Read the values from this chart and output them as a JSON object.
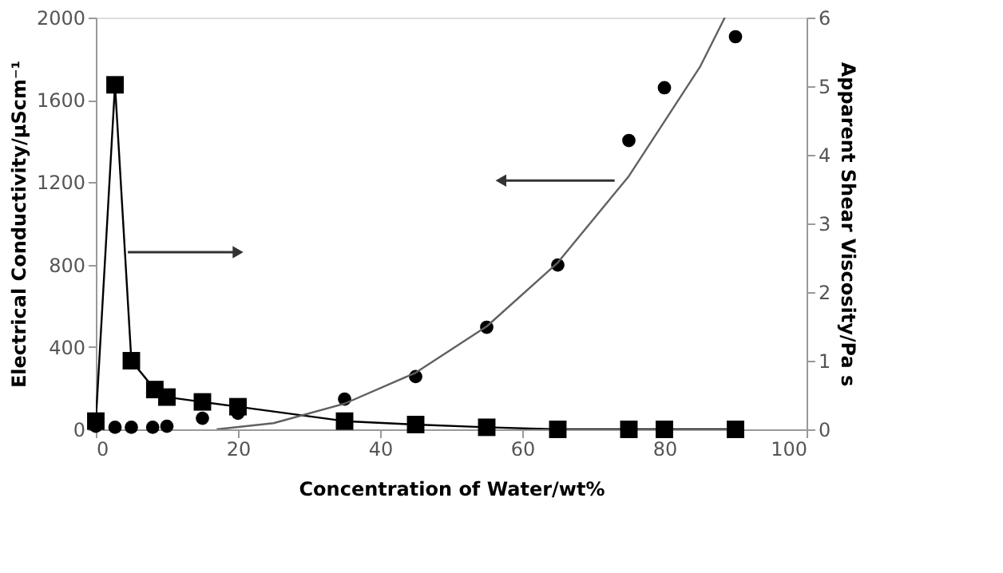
{
  "chart_data": {
    "type": "scatter",
    "xlabel": "Concentration of Water/wt%",
    "ylabel": "Electrical Conductivity/μScm⁻¹",
    "y2label": "Apparent Shear Viscosity/Pa s",
    "xlim": [
      0,
      100
    ],
    "xticks": [
      0,
      20,
      40,
      60,
      80,
      100
    ],
    "ylim": [
      0,
      2000
    ],
    "yticks": [
      0,
      400,
      800,
      1200,
      1600,
      2000
    ],
    "y2lim": [
      0,
      6
    ],
    "y2ticks": [
      0,
      1,
      2,
      3,
      4,
      5,
      6
    ],
    "grid": false,
    "series": [
      {
        "marker": "circle",
        "color": "#000000",
        "x": [
          0,
          2.7,
          5,
          8,
          10,
          15,
          20,
          35,
          45,
          55,
          65,
          75,
          80,
          90
        ],
        "values": [
          15,
          10,
          10,
          10,
          15,
          54,
          78,
          147,
          256,
          496,
          798,
          1403,
          1659,
          1907
        ]
      },
      {
        "type": "line",
        "marker": "none",
        "color": "#606060",
        "x": [
          17,
          25,
          35,
          45,
          55,
          65,
          75,
          85,
          88.5
        ],
        "values": [
          0,
          30,
          125,
          275,
          500,
          810,
          1230,
          1760,
          2000
        ]
      },
      {
        "type": "line",
        "marker": "square",
        "color": "#000000",
        "axis": "y2",
        "x": [
          0,
          2.7,
          5,
          8.3,
          10,
          15,
          20,
          35,
          45,
          55,
          65,
          75,
          80,
          90
        ],
        "values": [
          0.12,
          5.02,
          1.0,
          0.58,
          0.47,
          0.4,
          0.33,
          0.12,
          0.07,
          0.03,
          0.0,
          0.0,
          0.0,
          0.0
        ]
      }
    ]
  }
}
